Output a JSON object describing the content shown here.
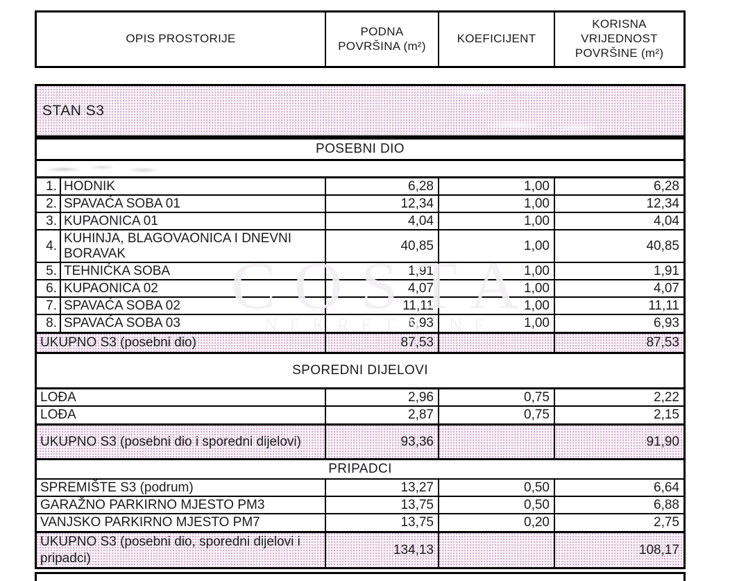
{
  "document": {
    "header": {
      "col_opis": "OPIS PROSTORIJE",
      "col_podna": "PODNA\nPOVRŠINA (m²)",
      "col_koef": "KOEFICIJENT",
      "col_korisna": "KORISNA\nVRIJEDNOST\nPOVRŠINE (m²)"
    },
    "unit_banner": "STAN S3",
    "sections": {
      "posebni": {
        "title": "POSEBNI DIO",
        "rows": [
          {
            "num": "1.",
            "name": "HODNIK",
            "podna": "6,28",
            "koef": "1,00",
            "korisna": "6,28"
          },
          {
            "num": "2.",
            "name": "SPAVAĆA SOBA 01",
            "podna": "12,34",
            "koef": "1,00",
            "korisna": "12,34"
          },
          {
            "num": "3.",
            "name": "KUPAONICA 01",
            "podna": "4,04",
            "koef": "1,00",
            "korisna": "4,04"
          },
          {
            "num": "4.",
            "name": "KUHINJA, BLAGOVAONICA I DNEVNI BORAVAK",
            "podna": "40,85",
            "koef": "1,00",
            "korisna": "40,85"
          },
          {
            "num": "5.",
            "name": "TEHNIĆKA SOBA",
            "podna": "1,91",
            "koef": "1,00",
            "korisna": "1,91"
          },
          {
            "num": "6.",
            "name": "KUPAONICA 02",
            "podna": "4,07",
            "koef": "1,00",
            "korisna": "4,07"
          },
          {
            "num": "7.",
            "name": "SPAVAĆA SOBA 02",
            "podna": "11,11",
            "koef": "1,00",
            "korisna": "11,11"
          },
          {
            "num": "8.",
            "name": "SPAVAĆA SOBA 03",
            "podna": "6,93",
            "koef": "1,00",
            "korisna": "6,93"
          }
        ],
        "total": {
          "label": "UKUPNO S3 (posebni dio)",
          "podna": "87,53",
          "koef": "",
          "korisna": "87,53"
        }
      },
      "sporedni": {
        "title": "SPOREDNI DIJELOVI",
        "rows": [
          {
            "name": "LOĐA",
            "podna": "2,96",
            "koef": "0,75",
            "korisna": "2,22"
          },
          {
            "name": "LOĐA",
            "podna": "2,87",
            "koef": "0,75",
            "korisna": "2,15"
          }
        ],
        "total": {
          "label": "UKUPNO S3 (posebni dio i sporedni dijelovi)",
          "podna": "93,36",
          "koef": "",
          "korisna": "91,90"
        }
      },
      "pripadci": {
        "title": "PRIPADCI",
        "rows": [
          {
            "name": "SPREMIŠTE S3 (podrum)",
            "podna": "13,27",
            "koef": "0,50",
            "korisna": "6,64"
          },
          {
            "name": "GARAŽNO PARKIRNO MJESTO PM3",
            "podna": "13,75",
            "koef": "0,50",
            "korisna": "6,88"
          },
          {
            "name": "VANJSKO PARKIRNO MJESTO PM7",
            "podna": "13,75",
            "koef": "0,20",
            "korisna": "2,75"
          }
        ],
        "total": {
          "label": "UKUPNO S3 (posebni dio, sporedni dijelovi i pripadci)",
          "podna": "134,13",
          "koef": "",
          "korisna": "108,17"
        }
      }
    },
    "watermark": {
      "line1": "COSTA",
      "line2": "NEKRETNINE"
    },
    "colors": {
      "highlight_pink": "#efdfec",
      "border_black": "#000000",
      "text": "#1b1b1d"
    }
  }
}
